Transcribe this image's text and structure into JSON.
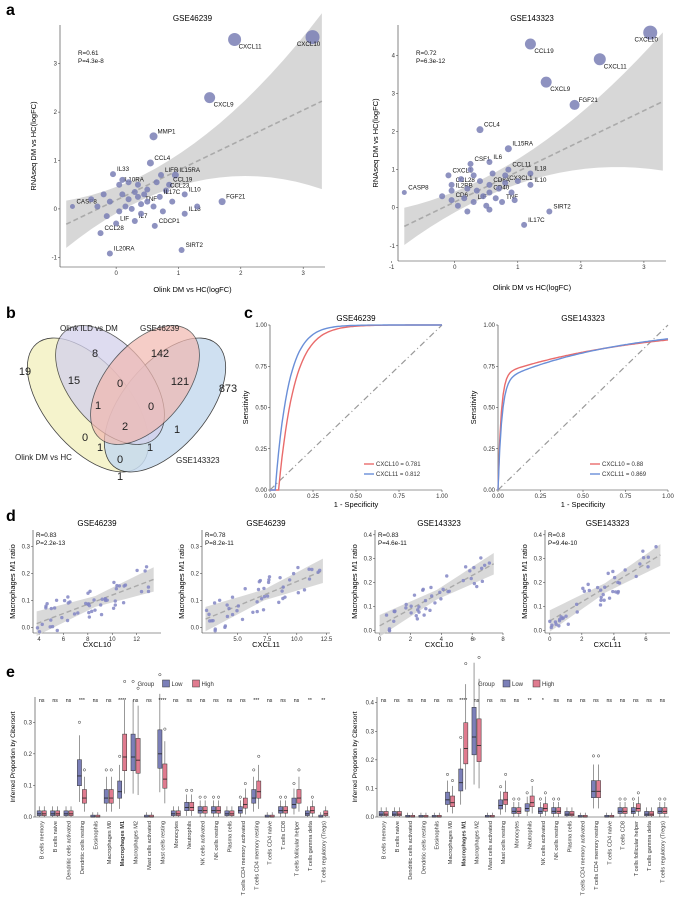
{
  "panel_labels": [
    "a",
    "b",
    "c",
    "d",
    "e"
  ],
  "chart_data": [
    {
      "id": "a1",
      "type": "scatter",
      "title": "GSE46239",
      "xlabel": "Olink DM vs HC(logFC)",
      "ylabel": "RNAseq DM vs HC(logFC)",
      "xlim": [
        -0.9,
        3.35
      ],
      "ylim": [
        -1.2,
        3.8
      ],
      "xticks": [
        0,
        1,
        2,
        3
      ],
      "yticks": [
        -1,
        0,
        1,
        2,
        3
      ],
      "stats": [
        "R=0.61",
        "P=4.3e-8"
      ],
      "fit": {
        "slope": 0.62,
        "intercept": 0.18,
        "band": [
          0.32,
          0.0,
          0.55
        ]
      },
      "points": [
        {
          "x": 3.15,
          "y": 3.55,
          "label": "CXCL10",
          "s": 7
        },
        {
          "x": 1.9,
          "y": 3.5,
          "label": "CXCL11",
          "s": 6.5
        },
        {
          "x": 1.5,
          "y": 2.3,
          "label": "CXCL9",
          "s": 5.5
        },
        {
          "x": 0.6,
          "y": 1.5,
          "label": "MMP1",
          "s": 4
        },
        {
          "x": 0.55,
          "y": 0.95,
          "label": "CCL4",
          "s": 3.5
        },
        {
          "x": 0.95,
          "y": 0.7,
          "label": "IL15RA",
          "s": 3.5
        },
        {
          "x": 0.72,
          "y": 0.7,
          "label": "LIFR",
          "s": 3
        },
        {
          "x": -0.05,
          "y": 0.72,
          "label": "IL33",
          "s": 3
        },
        {
          "x": 0.05,
          "y": 0.5,
          "label": "IL10RA",
          "s": 3
        },
        {
          "x": 0.85,
          "y": 0.5,
          "label": "CCL19",
          "s": 3
        },
        {
          "x": 0.8,
          "y": 0.38,
          "label": "CCL23",
          "s": 3
        },
        {
          "x": 1.1,
          "y": 0.3,
          "label": "IL10",
          "s": 3
        },
        {
          "x": 0.7,
          "y": 0.25,
          "label": "IL17C",
          "s": 3
        },
        {
          "x": 1.7,
          "y": 0.15,
          "label": "FGF21",
          "s": 3.5
        },
        {
          "x": 0.4,
          "y": 0.1,
          "label": "TNF",
          "s": 3
        },
        {
          "x": 1.1,
          "y": -0.1,
          "label": "IL18",
          "s": 3
        },
        {
          "x": -0.7,
          "y": 0.05,
          "label": "CASP8",
          "s": 2.5
        },
        {
          "x": 0.3,
          "y": -0.25,
          "label": "IL7",
          "s": 3
        },
        {
          "x": 0.62,
          "y": -0.35,
          "label": "CDCP1",
          "s": 3
        },
        {
          "x": 0.0,
          "y": -0.3,
          "label": "LIF",
          "s": 3
        },
        {
          "x": -0.25,
          "y": -0.5,
          "label": "CCL28",
          "s": 3
        },
        {
          "x": -0.1,
          "y": -0.92,
          "label": "IL20RA",
          "s": 3
        },
        {
          "x": 1.05,
          "y": -0.85,
          "label": "SIRT2",
          "s": 3
        },
        {
          "x": 0.1,
          "y": 0.3,
          "s": 3
        },
        {
          "x": 0.2,
          "y": 0.2,
          "s": 3
        },
        {
          "x": 0.3,
          "y": 0.35,
          "s": 3
        },
        {
          "x": -0.1,
          "y": 0.15,
          "s": 3
        },
        {
          "x": 0.15,
          "y": 0.05,
          "s": 3
        },
        {
          "x": 0.25,
          "y": 0.0,
          "s": 3
        },
        {
          "x": 0.35,
          "y": 0.5,
          "s": 3
        },
        {
          "x": 0.45,
          "y": 0.3,
          "s": 3
        },
        {
          "x": 0.5,
          "y": 0.15,
          "s": 3
        },
        {
          "x": 0.6,
          "y": 0.05,
          "s": 3
        },
        {
          "x": -0.2,
          "y": 0.3,
          "s": 3
        },
        {
          "x": -0.3,
          "y": 0.05,
          "s": 3
        },
        {
          "x": 0.05,
          "y": -0.05,
          "s": 3
        },
        {
          "x": 0.4,
          "y": -0.1,
          "s": 3
        },
        {
          "x": 0.5,
          "y": 0.4,
          "s": 3
        },
        {
          "x": 0.2,
          "y": 0.55,
          "s": 3
        },
        {
          "x": 0.9,
          "y": 0.15,
          "s": 3
        },
        {
          "x": 0.75,
          "y": -0.05,
          "s": 3
        },
        {
          "x": -0.4,
          "y": 0.2,
          "s": 3
        },
        {
          "x": 0.1,
          "y": 0.6,
          "s": 3
        },
        {
          "x": 0.65,
          "y": 0.55,
          "s": 3
        },
        {
          "x": 1.3,
          "y": 0.05,
          "s": 3
        },
        {
          "x": -0.15,
          "y": -0.15,
          "s": 3
        },
        {
          "x": 0.35,
          "y": 0.25,
          "s": 3
        }
      ]
    },
    {
      "id": "a2",
      "type": "scatter",
      "title": "GSE143323",
      "xlabel": "Olink DM vs HC(logFC)",
      "ylabel": "RNAseq DM vs HC(logFC)",
      "xlim": [
        -0.9,
        3.35
      ],
      "ylim": [
        -1.4,
        4.8
      ],
      "xticks": [
        -1,
        0,
        1,
        2,
        3
      ],
      "yticks": [
        -1,
        0,
        1,
        2,
        3,
        4
      ],
      "stats": [
        "R=0.72",
        "P=6.3e-12"
      ],
      "fit": {
        "slope": 0.8,
        "intercept": 0.15,
        "band": [
          0.38,
          0.0,
          0.7
        ]
      },
      "points": [
        {
          "x": 3.1,
          "y": 4.6,
          "label": "CXCL10",
          "s": 7
        },
        {
          "x": 1.2,
          "y": 4.3,
          "label": "CCL19",
          "s": 5.5
        },
        {
          "x": 2.3,
          "y": 3.9,
          "label": "CXCL11",
          "s": 6
        },
        {
          "x": 1.45,
          "y": 3.3,
          "label": "CXCL9",
          "s": 5.5
        },
        {
          "x": 1.9,
          "y": 2.7,
          "label": "FGF21",
          "s": 5
        },
        {
          "x": 0.4,
          "y": 2.05,
          "label": "CCL4",
          "s": 3.5
        },
        {
          "x": 0.85,
          "y": 1.55,
          "label": "IL15RA",
          "s": 3.5
        },
        {
          "x": 0.25,
          "y": 1.15,
          "label": "CSF1",
          "s": 3
        },
        {
          "x": 0.55,
          "y": 1.2,
          "label": "IL6",
          "s": 3
        },
        {
          "x": 0.85,
          "y": 1.0,
          "label": "CCL11",
          "s": 3
        },
        {
          "x": 1.2,
          "y": 0.9,
          "label": "IL18",
          "s": 3
        },
        {
          "x": -0.1,
          "y": 0.85,
          "label": "CXCL1",
          "s": 3
        },
        {
          "x": -0.05,
          "y": 0.6,
          "label": "CCL28",
          "s": 3
        },
        {
          "x": 0.55,
          "y": 0.6,
          "label": "CD8A",
          "s": 3
        },
        {
          "x": -0.05,
          "y": 0.45,
          "label": "IL2RB",
          "s": 3
        },
        {
          "x": 0.8,
          "y": 0.65,
          "label": "CX3CL1",
          "s": 3
        },
        {
          "x": 1.2,
          "y": 0.6,
          "label": "IL10",
          "s": 3
        },
        {
          "x": 0.55,
          "y": 0.4,
          "label": "CD40",
          "s": 3
        },
        {
          "x": -0.05,
          "y": 0.2,
          "label": "CD6",
          "s": 3
        },
        {
          "x": 0.3,
          "y": 0.15,
          "label": "LIF",
          "s": 3
        },
        {
          "x": 0.75,
          "y": 0.15,
          "label": "TNF",
          "s": 3
        },
        {
          "x": -0.8,
          "y": 0.4,
          "label": "CASP8",
          "s": 2.5
        },
        {
          "x": 1.5,
          "y": -0.1,
          "label": "SIRT2",
          "s": 3
        },
        {
          "x": 1.1,
          "y": -0.45,
          "label": "IL17C",
          "s": 3
        },
        {
          "x": 0.1,
          "y": 0.75,
          "s": 3
        },
        {
          "x": 0.2,
          "y": 0.5,
          "s": 3
        },
        {
          "x": 0.3,
          "y": 0.85,
          "s": 3
        },
        {
          "x": 0.45,
          "y": 0.3,
          "s": 3
        },
        {
          "x": 0.6,
          "y": 0.9,
          "s": 3
        },
        {
          "x": 0.7,
          "y": 0.5,
          "s": 3
        },
        {
          "x": 0.15,
          "y": 0.25,
          "s": 3
        },
        {
          "x": 0.4,
          "y": 0.7,
          "s": 3
        },
        {
          "x": 0.9,
          "y": 0.4,
          "s": 3
        },
        {
          "x": 0.05,
          "y": 0.05,
          "s": 3
        },
        {
          "x": 0.5,
          "y": 0.05,
          "s": 3
        },
        {
          "x": 0.65,
          "y": 0.25,
          "s": 3
        },
        {
          "x": 0.35,
          "y": 0.45,
          "s": 3
        },
        {
          "x": 1.0,
          "y": 0.7,
          "s": 3
        },
        {
          "x": 0.25,
          "y": 1.0,
          "s": 3
        },
        {
          "x": 0.8,
          "y": 0.85,
          "s": 3
        },
        {
          "x": -0.2,
          "y": 0.3,
          "s": 3
        },
        {
          "x": 0.95,
          "y": 0.2,
          "s": 3
        },
        {
          "x": 0.55,
          "y": -0.05,
          "s": 3
        },
        {
          "x": 0.2,
          "y": -0.1,
          "s": 3
        }
      ]
    },
    {
      "id": "c1",
      "type": "line",
      "title": "GSE46239",
      "xlabel": "1 - Specificity",
      "ylabel": "Sensitivity",
      "xlim": [
        0,
        1
      ],
      "ylim": [
        0,
        1
      ],
      "xticks": [
        "0.00",
        "0.25",
        "0.50",
        "0.75",
        "1.00"
      ],
      "yticks": [
        "0.00",
        "0.25",
        "0.50",
        "0.75",
        "1.00"
      ],
      "series": [
        {
          "name": "CXCL10",
          "auc": "0.781",
          "color": "#e96b6b",
          "kind": "late"
        },
        {
          "name": "CXCL11",
          "auc": "0.812",
          "color": "#6a8fd8",
          "kind": "early"
        }
      ],
      "legend": [
        "CXCL10 = ",
        "CXCL11 = "
      ]
    },
    {
      "id": "c2",
      "type": "line",
      "title": "GSE143323",
      "xlabel": "1 - Specificity",
      "ylabel": "Sensitivity",
      "xlim": [
        0,
        1
      ],
      "ylim": [
        0,
        1
      ],
      "xticks": [
        "0.00",
        "0.25",
        "0.50",
        "0.75",
        "1.00"
      ],
      "yticks": [
        "0.00",
        "0.25",
        "0.50",
        "0.75",
        "1.00"
      ],
      "series": [
        {
          "name": "CXCL10",
          "auc": "0.88",
          "color": "#e96b6b",
          "kind": "steep1"
        },
        {
          "name": "CXCL11",
          "auc": "0.869",
          "color": "#6a8fd8",
          "kind": "steep2"
        }
      ],
      "legend": [
        "CXCL10 = ",
        "CXCL11 = "
      ]
    },
    {
      "id": "d1",
      "type": "scatter",
      "title": "GSE46239",
      "xlabel": "CXCL10",
      "ylabel": "Macrophages M1 ratio",
      "xlim": [
        3.5,
        14
      ],
      "ylim": [
        -0.02,
        0.36
      ],
      "xticks": [
        4,
        6,
        8,
        10,
        12
      ],
      "yticks": [
        "0.0",
        "0.1",
        "0.2",
        "0.3"
      ],
      "stats": [
        "R=0.83",
        "P=2.2e-13"
      ],
      "fit": {
        "slope": 0.017,
        "intercept": -0.05
      }
    },
    {
      "id": "d2",
      "type": "scatter",
      "title": "GSE46239",
      "xlabel": "CXCL11",
      "ylabel": "Macrophages M1 ratio",
      "xlim": [
        2,
        12.8
      ],
      "ylim": [
        -0.02,
        0.36
      ],
      "xticks": [
        "5.0",
        "7.5",
        "10.0",
        "12.5"
      ],
      "yticks": [
        "0.0",
        "0.1",
        "0.2",
        "0.3"
      ],
      "stats": [
        "R=0.78",
        "P=8.2e-11"
      ],
      "fit": {
        "slope": 0.018,
        "intercept": -0.01
      }
    },
    {
      "id": "d3",
      "type": "scatter",
      "title": "GSE143323",
      "xlabel": "CXCL10",
      "ylabel": "Macrophages M1 ratio",
      "xlim": [
        -0.3,
        8
      ],
      "ylim": [
        -0.01,
        0.42
      ],
      "xticks": [
        0,
        2,
        4,
        6,
        8
      ],
      "yticks": [
        "0.0",
        "0.1",
        "0.2",
        "0.3",
        "0.4"
      ],
      "stats": [
        "R=0.83",
        "P=4.6e-11"
      ],
      "fit": {
        "slope": 0.035,
        "intercept": 0.02
      }
    },
    {
      "id": "d4",
      "type": "scatter",
      "title": "GSE143323",
      "xlabel": "CXCL11",
      "ylabel": "Macrophages M1 ratio",
      "xlim": [
        -0.3,
        7.5
      ],
      "ylim": [
        -0.01,
        0.42
      ],
      "xticks": [
        0,
        2,
        4,
        6
      ],
      "yticks": [
        "0.0",
        "0.1",
        "0.2",
        "0.3",
        "0.4"
      ],
      "stats": [
        "R=0.8",
        "P=9.4e-10"
      ],
      "fit": {
        "slope": 0.04,
        "intercept": 0.04
      }
    },
    {
      "id": "e1",
      "type": "box",
      "ylabel": "Inferred Proportion by Cibersort",
      "legend": {
        "title": "Group",
        "items": [
          {
            "name": "Low",
            "color": "#7b7fb8"
          },
          {
            "name": "High",
            "color": "#e07b8f"
          }
        ]
      },
      "ylim": [
        0,
        0.38
      ],
      "yticks": [
        "0.0",
        "0.1",
        "0.2",
        "0.3"
      ],
      "categories": [
        "B cells memory",
        "B cells naive",
        "Dendritic cells activated",
        "Dendritic cells resting",
        "Eosinophils",
        "Macrophages M0",
        "Macrophages M1",
        "Macrophages M2",
        "Mast cells activated",
        "Mast cells resting",
        "Monocytes",
        "Neutrophils",
        "NK cells activated",
        "NK cells resting",
        "Plasma cells",
        "T cells CD4 memory activated",
        "T cells CD4 memory resting",
        "T cells CD4 naive",
        "T cells CD8",
        "T cells follicular helper",
        "T cells gamma delta",
        "T cells regulatory (Tregs)"
      ],
      "bold": [
        "Macrophages M1"
      ],
      "signif": [
        "ns",
        "ns",
        "ns",
        "***",
        "ns",
        "ns",
        "****",
        "ns",
        "ns",
        "****",
        "ns",
        "ns",
        "ns",
        "ns",
        "ns",
        "ns",
        "***",
        "ns",
        "ns",
        "ns",
        "**",
        "**"
      ],
      "low_median": [
        0.01,
        0.01,
        0.01,
        0.13,
        0.0,
        0.06,
        0.08,
        0.19,
        0.0,
        0.2,
        0.01,
        0.03,
        0.02,
        0.02,
        0.01,
        0.02,
        0.06,
        0.0,
        0.02,
        0.04,
        0.01,
        0.0
      ],
      "high_median": [
        0.01,
        0.01,
        0.01,
        0.06,
        0.0,
        0.06,
        0.19,
        0.18,
        0.0,
        0.12,
        0.01,
        0.03,
        0.02,
        0.02,
        0.01,
        0.04,
        0.08,
        0.0,
        0.02,
        0.06,
        0.02,
        0.01
      ]
    },
    {
      "id": "e2",
      "type": "box",
      "ylabel": "Inferred Proportion by Cibersort",
      "legend": {
        "title": "Group",
        "items": [
          {
            "name": "Low",
            "color": "#7b7fb8"
          },
          {
            "name": "High",
            "color": "#e07b8f"
          }
        ]
      },
      "ylim": [
        0,
        0.42
      ],
      "yticks": [
        "0.0",
        "0.1",
        "0.2",
        "0.3",
        "0.4"
      ],
      "categories": [
        "B cells memory",
        "B cells naive",
        "Dendritic cells activated",
        "Dendritic cells resting",
        "Eosinophils",
        "Macrophages M0",
        "Macrophages M1",
        "Macrophages M2",
        "Mast cells activated",
        "Mast cells resting",
        "Monocytes",
        "Neutrophils",
        "NK cells activated",
        "NK cells resting",
        "Plasma cells",
        "T cells CD4 memory activated",
        "T cells CD4 memory resting",
        "T cells CD4 naive",
        "T cells CD8",
        "T cells follicular helper",
        "T cells gamma delta",
        "T cells regulatory (Tregs)"
      ],
      "bold": [
        "Macrophages M1"
      ],
      "signif": [
        "ns",
        "ns",
        "ns",
        "ns",
        "ns",
        "ns",
        "****",
        "ns",
        "ns",
        "ns",
        "ns",
        "**",
        "*",
        "ns",
        "ns",
        "ns",
        "ns",
        "ns",
        "ns",
        "ns",
        "ns",
        "ns"
      ],
      "low_median": [
        0.01,
        0.01,
        0.0,
        0.0,
        0.0,
        0.06,
        0.12,
        0.28,
        0.0,
        0.04,
        0.02,
        0.03,
        0.02,
        0.02,
        0.01,
        0.0,
        0.09,
        0.0,
        0.02,
        0.02,
        0.01,
        0.02
      ],
      "high_median": [
        0.01,
        0.01,
        0.0,
        0.0,
        0.0,
        0.05,
        0.24,
        0.25,
        0.0,
        0.06,
        0.02,
        0.05,
        0.03,
        0.02,
        0.01,
        0.0,
        0.09,
        0.0,
        0.02,
        0.03,
        0.01,
        0.02
      ]
    }
  ],
  "venn": {
    "set_labels": [
      "Olink ILD vs DM",
      "GSE46239",
      "Olink DM vs HC",
      "GSE143323"
    ],
    "counts": [
      "19",
      "8",
      "142",
      "873",
      "15",
      "0",
      "121",
      "1",
      "0",
      "1",
      "2",
      "0",
      "1",
      "1",
      "0",
      "1"
    ]
  }
}
